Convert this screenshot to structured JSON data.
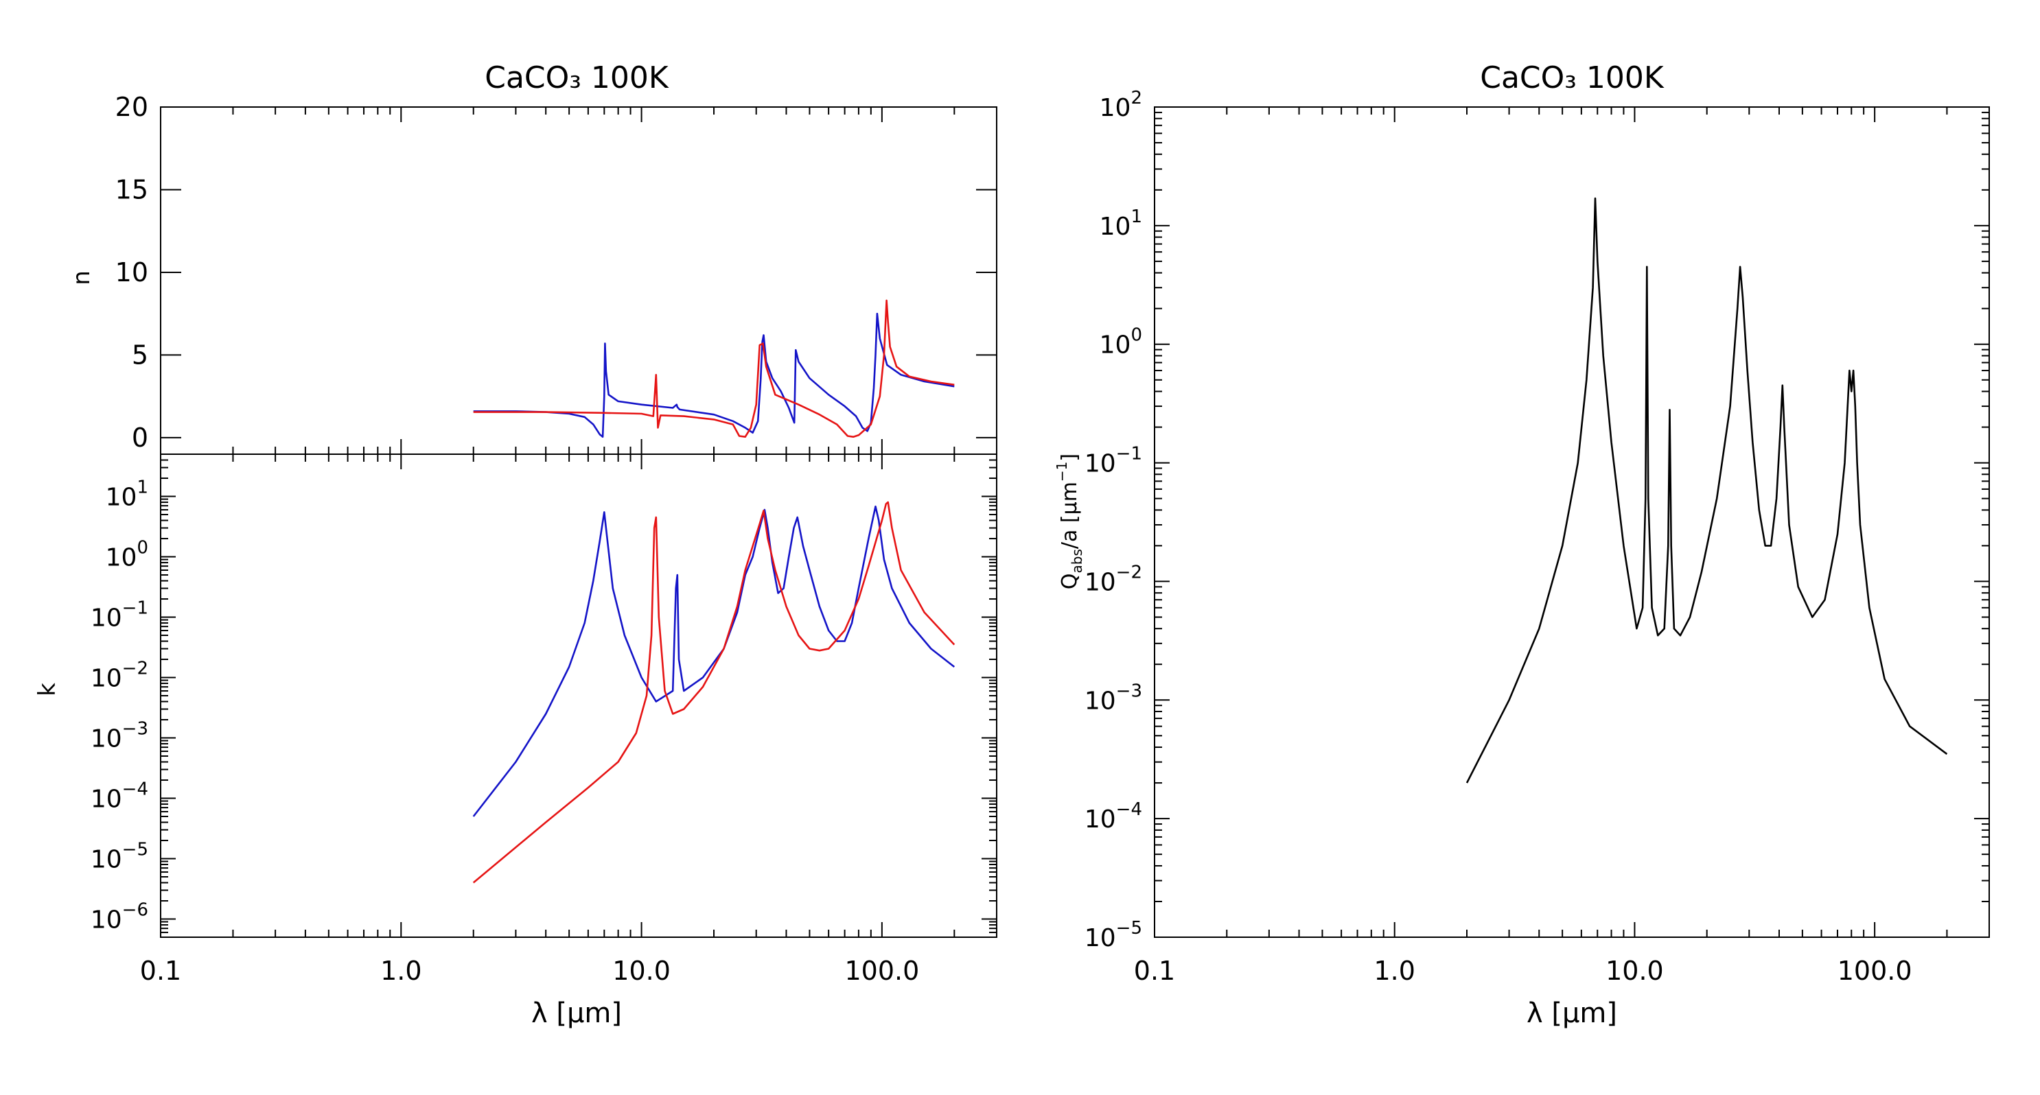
{
  "chart_data": [
    {
      "type": "line",
      "panel": "n",
      "title": "CaCO₃ 100K",
      "xlabel": "",
      "ylabel": "n",
      "xscale": "log",
      "yscale": "linear",
      "xlim": [
        0.1,
        300
      ],
      "ylim": [
        -1,
        20
      ],
      "yticks": [
        0,
        5,
        10,
        15,
        20
      ],
      "ytick_labels": [
        "0",
        "5",
        "10",
        "15",
        "20"
      ],
      "series": [
        {
          "color": "#1414c8",
          "x": [
            2,
            3,
            4,
            5,
            5.8,
            6.3,
            6.7,
            6.9,
            7.0,
            7.05,
            7.12,
            7.3,
            8,
            10,
            13.5,
            14,
            14.1,
            14.4,
            20,
            24,
            27,
            29,
            30.5,
            31.3,
            31.8,
            32.2,
            33,
            35,
            38,
            41,
            43.2,
            43.8,
            45,
            50,
            60,
            70,
            78,
            83,
            87,
            90,
            92.5,
            94,
            95.5,
            98,
            105,
            120,
            150,
            200
          ],
          "y": [
            1.6,
            1.6,
            1.55,
            1.45,
            1.25,
            0.8,
            0.2,
            0.05,
            2.5,
            5.7,
            4.0,
            2.6,
            2.2,
            2.0,
            1.8,
            2.0,
            1.85,
            1.7,
            1.4,
            1.0,
            0.6,
            0.3,
            1.0,
            3.5,
            5.8,
            6.2,
            4.6,
            3.6,
            2.8,
            1.8,
            0.9,
            5.3,
            4.6,
            3.6,
            2.6,
            1.9,
            1.3,
            0.6,
            0.4,
            0.9,
            3.0,
            5.0,
            7.5,
            6.0,
            4.4,
            3.8,
            3.4,
            3.1
          ]
        },
        {
          "color": "#e61414",
          "x": [
            2,
            4,
            7,
            10,
            11.2,
            11.5,
            11.7,
            12,
            15,
            20,
            24,
            25.5,
            27,
            28.5,
            30,
            31,
            32,
            33,
            36,
            45,
            55,
            65,
            72,
            76,
            80,
            90,
            98,
            102,
            104.5,
            106,
            108,
            115,
            130,
            160,
            200
          ],
          "y": [
            1.55,
            1.55,
            1.5,
            1.45,
            1.3,
            3.8,
            0.6,
            1.35,
            1.3,
            1.1,
            0.8,
            0.1,
            0.05,
            0.6,
            2.0,
            5.6,
            5.7,
            4.3,
            2.6,
            2.0,
            1.4,
            0.8,
            0.1,
            0.05,
            0.15,
            0.8,
            2.5,
            5.0,
            8.3,
            7.0,
            5.5,
            4.3,
            3.7,
            3.4,
            3.2
          ]
        }
      ]
    },
    {
      "type": "line",
      "panel": "k",
      "title": "",
      "xlabel": "λ [μm]",
      "ylabel": "k",
      "xscale": "log",
      "yscale": "log",
      "xlim": [
        0.1,
        300
      ],
      "ylim": [
        5e-07,
        50
      ],
      "xticks": [
        0.1,
        1.0,
        10.0,
        100.0
      ],
      "xtick_labels": [
        "0.1",
        "1.0",
        "10.0",
        "100.0"
      ],
      "yticks": [
        1e-06,
        1e-05,
        0.0001,
        0.001,
        0.01,
        0.1,
        1,
        10
      ],
      "ytick_labels": [
        {
          "base": "10",
          "exp": "−6"
        },
        {
          "base": "10",
          "exp": "−5"
        },
        {
          "base": "10",
          "exp": "−4"
        },
        {
          "base": "10",
          "exp": "−3"
        },
        {
          "base": "10",
          "exp": "−2"
        },
        {
          "base": "10",
          "exp": "−1"
        },
        {
          "base": "10",
          "exp": "0"
        },
        {
          "base": "10",
          "exp": "1"
        }
      ],
      "series": [
        {
          "color": "#1414c8",
          "x": [
            2,
            3,
            4,
            5,
            5.8,
            6.3,
            6.7,
            7.0,
            7.2,
            7.6,
            8.5,
            10,
            11.5,
            13.5,
            13.9,
            14.1,
            14.3,
            15,
            18,
            22,
            25,
            27,
            29,
            31,
            32.5,
            33.5,
            35,
            37,
            39,
            41,
            43,
            44.5,
            47,
            50,
            55,
            60,
            65,
            70,
            75,
            80,
            88,
            94,
            97,
            102,
            110,
            130,
            160,
            200
          ],
          "y": [
            5e-05,
            0.0004,
            0.0025,
            0.015,
            0.08,
            0.4,
            1.8,
            5.5,
            2.0,
            0.3,
            0.05,
            0.01,
            0.004,
            0.006,
            0.3,
            0.5,
            0.02,
            0.006,
            0.01,
            0.03,
            0.12,
            0.5,
            1.0,
            3.0,
            6.0,
            3.0,
            0.8,
            0.25,
            0.3,
            1.0,
            3.0,
            4.5,
            1.5,
            0.6,
            0.15,
            0.06,
            0.04,
            0.04,
            0.08,
            0.3,
            2.0,
            6.8,
            4.0,
            0.9,
            0.3,
            0.08,
            0.03,
            0.015
          ]
        },
        {
          "color": "#e61414",
          "x": [
            2,
            4,
            6,
            8,
            9.5,
            10.5,
            11.0,
            11.3,
            11.5,
            11.8,
            12.5,
            13.5,
            15,
            18,
            22,
            25,
            27,
            29,
            31,
            32.2,
            33.5,
            36,
            40,
            45,
            50,
            55,
            60,
            70,
            80,
            88,
            95,
            100,
            104,
            106,
            110,
            120,
            150,
            200
          ],
          "y": [
            4e-06,
            4e-05,
            0.00015,
            0.0004,
            0.0012,
            0.005,
            0.05,
            3.0,
            4.5,
            0.1,
            0.006,
            0.0025,
            0.003,
            0.007,
            0.03,
            0.15,
            0.6,
            1.5,
            3.5,
            5.8,
            2.0,
            0.6,
            0.15,
            0.05,
            0.03,
            0.028,
            0.03,
            0.06,
            0.2,
            0.7,
            2.0,
            4.0,
            7.5,
            8.0,
            3.0,
            0.6,
            0.12,
            0.035
          ]
        }
      ]
    },
    {
      "type": "line",
      "panel": "qabs",
      "title": "CaCO₃ 100K",
      "xlabel": "λ [μm]",
      "ylabel": "Q_abs/a [μm⁻¹]",
      "ylabel_parts": {
        "q": "Q",
        "sub": "abs",
        "mid": "/a [μm",
        "exp": "−1",
        "end": "]"
      },
      "xscale": "log",
      "yscale": "log",
      "xlim": [
        0.1,
        300
      ],
      "ylim": [
        1e-05,
        100
      ],
      "xticks": [
        0.1,
        1.0,
        10.0,
        100.0
      ],
      "xtick_labels": [
        "0.1",
        "1.0",
        "10.0",
        "100.0"
      ],
      "yticks": [
        1e-05,
        0.0001,
        0.001,
        0.01,
        0.1,
        1,
        10,
        100
      ],
      "ytick_labels": [
        {
          "base": "10",
          "exp": "−5"
        },
        {
          "base": "10",
          "exp": "−4"
        },
        {
          "base": "10",
          "exp": "−3"
        },
        {
          "base": "10",
          "exp": "−2"
        },
        {
          "base": "10",
          "exp": "−1"
        },
        {
          "base": "10",
          "exp": "0"
        },
        {
          "base": "10",
          "exp": "1"
        },
        {
          "base": "10",
          "exp": "2"
        }
      ],
      "series": [
        {
          "color": "#000000",
          "x": [
            2,
            3,
            4,
            5,
            5.8,
            6.3,
            6.7,
            6.85,
            7.0,
            7.4,
            8,
            9,
            10.2,
            10.8,
            11.1,
            11.25,
            11.4,
            11.8,
            12.5,
            13.3,
            13.8,
            14.0,
            14.2,
            14.6,
            15.5,
            17,
            19,
            22,
            25,
            26.8,
            27.5,
            28.2,
            29.5,
            31,
            33,
            35,
            37,
            39,
            40.5,
            41.3,
            42,
            44,
            48,
            55,
            62,
            70,
            75,
            78.5,
            80,
            81.5,
            83,
            84.5,
            87,
            95,
            110,
            140,
            200
          ],
          "y": [
            0.0002,
            0.001,
            0.004,
            0.02,
            0.1,
            0.5,
            3.0,
            17.0,
            5.0,
            0.8,
            0.15,
            0.02,
            0.004,
            0.006,
            0.05,
            4.5,
            0.05,
            0.006,
            0.0035,
            0.004,
            0.02,
            0.28,
            0.02,
            0.004,
            0.0035,
            0.005,
            0.012,
            0.05,
            0.3,
            2.0,
            4.5,
            2.5,
            0.6,
            0.15,
            0.04,
            0.02,
            0.02,
            0.05,
            0.2,
            0.45,
            0.2,
            0.03,
            0.009,
            0.005,
            0.007,
            0.025,
            0.1,
            0.6,
            0.4,
            0.6,
            0.3,
            0.1,
            0.03,
            0.006,
            0.0015,
            0.0006,
            0.00035
          ]
        }
      ]
    }
  ]
}
